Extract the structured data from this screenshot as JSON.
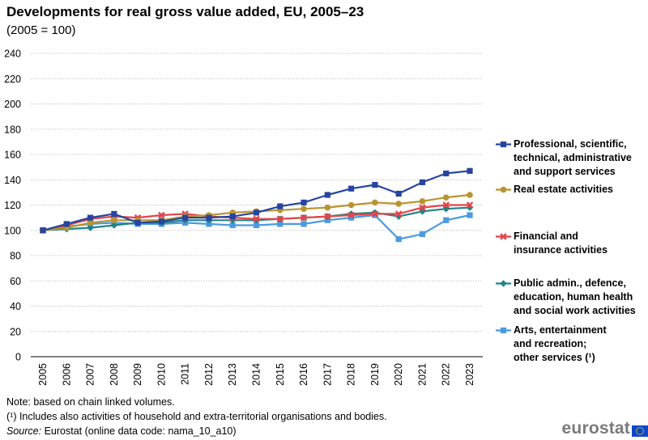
{
  "chart_data": {
    "type": "line",
    "title": "Developments for real gross value added, EU, 2005–23",
    "subtitle": "(2005 = 100)",
    "xlabel": "",
    "ylabel": "",
    "ylim": [
      0,
      240
    ],
    "yticks": [
      0,
      20,
      40,
      60,
      80,
      100,
      120,
      140,
      160,
      180,
      200,
      220,
      240
    ],
    "grid": true,
    "legend_position": "right",
    "categories": [
      "2005",
      "2006",
      "2007",
      "2008",
      "2009",
      "2010",
      "2011",
      "2012",
      "2013",
      "2014",
      "2015",
      "2016",
      "2017",
      "2018",
      "2019",
      "2020",
      "2021",
      "2022",
      "2023"
    ],
    "series": [
      {
        "name": "Professional, scientific, technical, administrative and support services",
        "legend_lines": [
          "Professional, scientific,",
          "technical, administrative",
          "and support services"
        ],
        "color": "#2644a0",
        "marker": "square",
        "values": [
          100,
          105,
          110,
          113,
          106,
          107,
          110,
          110,
          111,
          114,
          119,
          122,
          128,
          133,
          136,
          129,
          138,
          145,
          147
        ]
      },
      {
        "name": "Real estate activities",
        "legend_lines": [
          "Real estate activities"
        ],
        "color": "#b9952f",
        "marker": "circle",
        "values": [
          100,
          102,
          106,
          108,
          108,
          108,
          111,
          112,
          114,
          115,
          116,
          117,
          118,
          120,
          122,
          121,
          123,
          126,
          128
        ]
      },
      {
        "name": "Financial and insurance activities",
        "legend_lines": [
          "Financial and",
          "insurance activities"
        ],
        "color": "#e0464b",
        "marker": "cross",
        "values": [
          100,
          104,
          109,
          111,
          110,
          112,
          113,
          111,
          110,
          109,
          109,
          110,
          111,
          112,
          113,
          113,
          118,
          120,
          120
        ]
      },
      {
        "name": "Public admin., defence, education, human health and social work activities",
        "legend_lines": [
          "Public admin., defence,",
          "education, human health",
          "and social work activities"
        ],
        "color": "#208486",
        "marker": "diamond",
        "values": [
          100,
          101,
          102,
          104,
          106,
          106,
          108,
          108,
          108,
          108,
          109,
          110,
          111,
          113,
          114,
          111,
          115,
          117,
          118
        ]
      },
      {
        "name": "Arts, entertainment and recreation; other services (¹)",
        "legend_lines": [
          "Arts, entertainment",
          "and recreation;",
          "other services (¹)"
        ],
        "color": "#4a9ae0",
        "marker": "square",
        "values": [
          100,
          103,
          105,
          106,
          105,
          105,
          106,
          105,
          104,
          104,
          105,
          105,
          108,
          110,
          112,
          93,
          97,
          108,
          112
        ]
      }
    ]
  },
  "notes": {
    "note1": "Note: based on chain linked volumes.",
    "note2": "(¹) Includes also activities of household and extra-territorial organisations and bodies.",
    "source_label": "Source:",
    "source_text": " Eurostat (online data code: nama_10_a10)"
  },
  "logo": {
    "text": "eurostat"
  }
}
